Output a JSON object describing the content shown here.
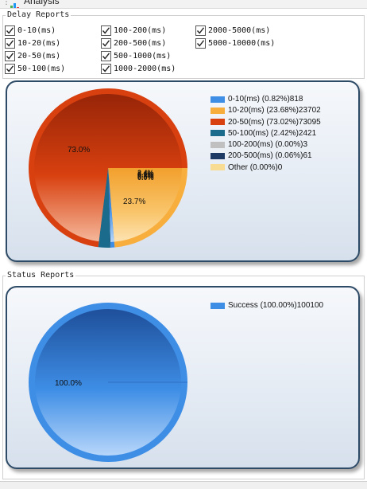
{
  "window": {
    "title": "Analysis"
  },
  "delay_group": {
    "title": "Delay  Reports",
    "checkboxes": [
      {
        "label": "0-10(ms)",
        "checked": true
      },
      {
        "label": "100-200(ms)",
        "checked": true
      },
      {
        "label": "2000-5000(ms)",
        "checked": true
      },
      {
        "label": "10-20(ms)",
        "checked": true
      },
      {
        "label": "200-500(ms)",
        "checked": true
      },
      {
        "label": "5000-10000(ms)",
        "checked": true
      },
      {
        "label": "20-50(ms)",
        "checked": true
      },
      {
        "label": "500-1000(ms)",
        "checked": true
      },
      {
        "label": "50-100(ms)",
        "checked": true
      },
      {
        "label": "1000-2000(ms)",
        "checked": true
      }
    ]
  },
  "status_group": {
    "title": "Status Reports"
  },
  "chart_data": [
    {
      "type": "pie",
      "title": "",
      "slices": [
        {
          "label": "0-10(ms) (0.82%)818",
          "value": 818,
          "color": "#3e8ee6"
        },
        {
          "label": "10-20(ms) (23.68%)23702",
          "value": 23702,
          "color": "#f7ae3c"
        },
        {
          "label": "20-50(ms) (73.02%)73095",
          "value": 73095,
          "color": "#d8400f"
        },
        {
          "label": "50-100(ms) (2.42%)2421",
          "value": 2421,
          "color": "#1a6b8c"
        },
        {
          "label": "100-200(ms) (0.00%)3",
          "value": 3,
          "color": "#c0c0c0"
        },
        {
          "label": "200-500(ms) (0.06%)61",
          "value": 61,
          "color": "#1c3a63"
        },
        {
          "label": "Other (0.00%)0",
          "value": 0,
          "color": "#f8dc93"
        }
      ],
      "slice_labels": [
        "73.0%",
        "23.7%",
        "2.4%",
        "0.8%",
        "0.0%",
        "0.1%"
      ],
      "legend_position": "top-right"
    },
    {
      "type": "pie",
      "title": "",
      "slices": [
        {
          "label": "Success (100.00%)100100",
          "value": 100100,
          "color": "#3e8ee6"
        }
      ],
      "slice_labels": [
        "100.0%"
      ],
      "legend_position": "top-right"
    }
  ]
}
